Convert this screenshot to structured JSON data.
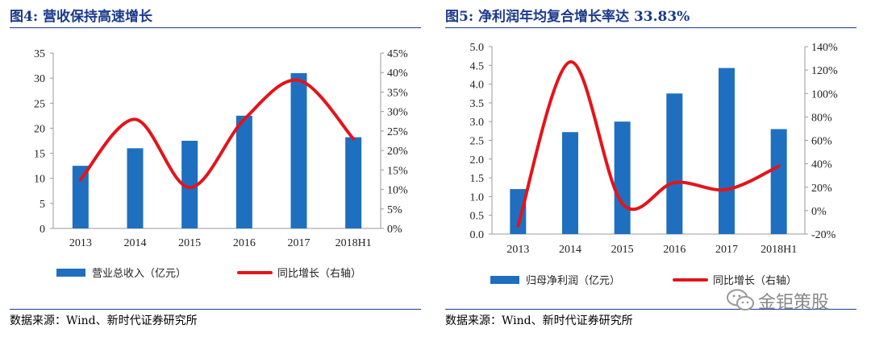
{
  "figures": [
    {
      "title": "图4:  营收保持高速增长",
      "source": "数据来源：Wind、新时代证券研究所",
      "chart_data": {
        "type": "bar",
        "categories": [
          "2013",
          "2014",
          "2015",
          "2016",
          "2017",
          "2018H1"
        ],
        "series": [
          {
            "name": "营业总收入（亿元）",
            "type": "bar",
            "axis": "left",
            "color": "#1f6fc0",
            "values": [
              12.5,
              16.0,
              17.5,
              22.5,
              31.0,
              18.2
            ]
          },
          {
            "name": "同比增长（右轴）",
            "type": "line",
            "axis": "right",
            "color": "#e3141b",
            "values": [
              12.5,
              28.0,
              10.5,
              28.0,
              38.0,
              23.0
            ]
          }
        ],
        "y_left": {
          "min": 0,
          "max": 35,
          "step": 5,
          "tick_labels": [
            "0",
            "5",
            "10",
            "15",
            "20",
            "25",
            "30",
            "35"
          ]
        },
        "y_right": {
          "min": 0,
          "max": 45,
          "step": 5,
          "tick_labels": [
            "0%",
            "5%",
            "10%",
            "15%",
            "20%",
            "25%",
            "30%",
            "35%",
            "40%",
            "45%"
          ]
        },
        "legend_position": "bottom",
        "grid": false
      }
    },
    {
      "title": "图5:  净利润年均复合增长率达 33.83%",
      "source": "数据来源：Wind、新时代证券研究所",
      "chart_data": {
        "type": "bar",
        "categories": [
          "2013",
          "2014",
          "2015",
          "2016",
          "2017",
          "2018H1"
        ],
        "series": [
          {
            "name": "归母净利润（亿元）",
            "type": "bar",
            "axis": "left",
            "color": "#1f6fc0",
            "values": [
              1.2,
              2.72,
              3.0,
              3.75,
              4.43,
              2.8
            ]
          },
          {
            "name": "同比增长（右轴）",
            "type": "line",
            "axis": "right",
            "color": "#e3141b",
            "values": [
              -13,
              127,
              6,
              24,
              18,
              38
            ]
          }
        ],
        "y_left": {
          "min": 0,
          "max": 5.0,
          "step": 0.5,
          "tick_labels": [
            "0.0",
            "0.5",
            "1.0",
            "1.5",
            "2.0",
            "2.5",
            "3.0",
            "3.5",
            "4.0",
            "4.5",
            "5.0"
          ]
        },
        "y_right": {
          "min": -20,
          "max": 140,
          "step": 20,
          "tick_labels": [
            "-20%",
            "0%",
            "20%",
            "40%",
            "60%",
            "80%",
            "100%",
            "120%",
            "140%"
          ]
        },
        "legend_position": "bottom",
        "grid": false
      }
    }
  ],
  "watermark": {
    "text": "金钜策股",
    "icon": "wechat-icon"
  }
}
